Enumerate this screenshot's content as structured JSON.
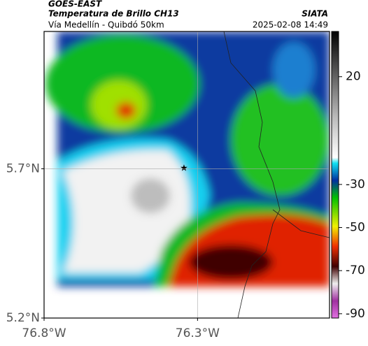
{
  "header": {
    "title": "GOES-EAST",
    "subtitle": "Temperatura de Brillo CH13",
    "source": "SIATA",
    "caption": "Vía Medellín - Quibdó 50km",
    "timestamp": "2025-02-08 14:49"
  },
  "map": {
    "latlim": [
      5.2,
      6.16
    ],
    "lonlim": [
      -76.8,
      -75.87
    ],
    "lat_ticks": [
      {
        "value": 5.2,
        "label": "5.2°N"
      },
      {
        "value": 5.7,
        "label": "5.7°N"
      }
    ],
    "lon_ticks": [
      {
        "value": -76.8,
        "label": "76.8°W"
      },
      {
        "value": -76.3,
        "label": "76.3°W"
      }
    ]
  },
  "colorbar": {
    "lim": [
      -92,
      41
    ],
    "ticks": [
      20,
      -30,
      -50,
      -70,
      -90
    ]
  }
}
